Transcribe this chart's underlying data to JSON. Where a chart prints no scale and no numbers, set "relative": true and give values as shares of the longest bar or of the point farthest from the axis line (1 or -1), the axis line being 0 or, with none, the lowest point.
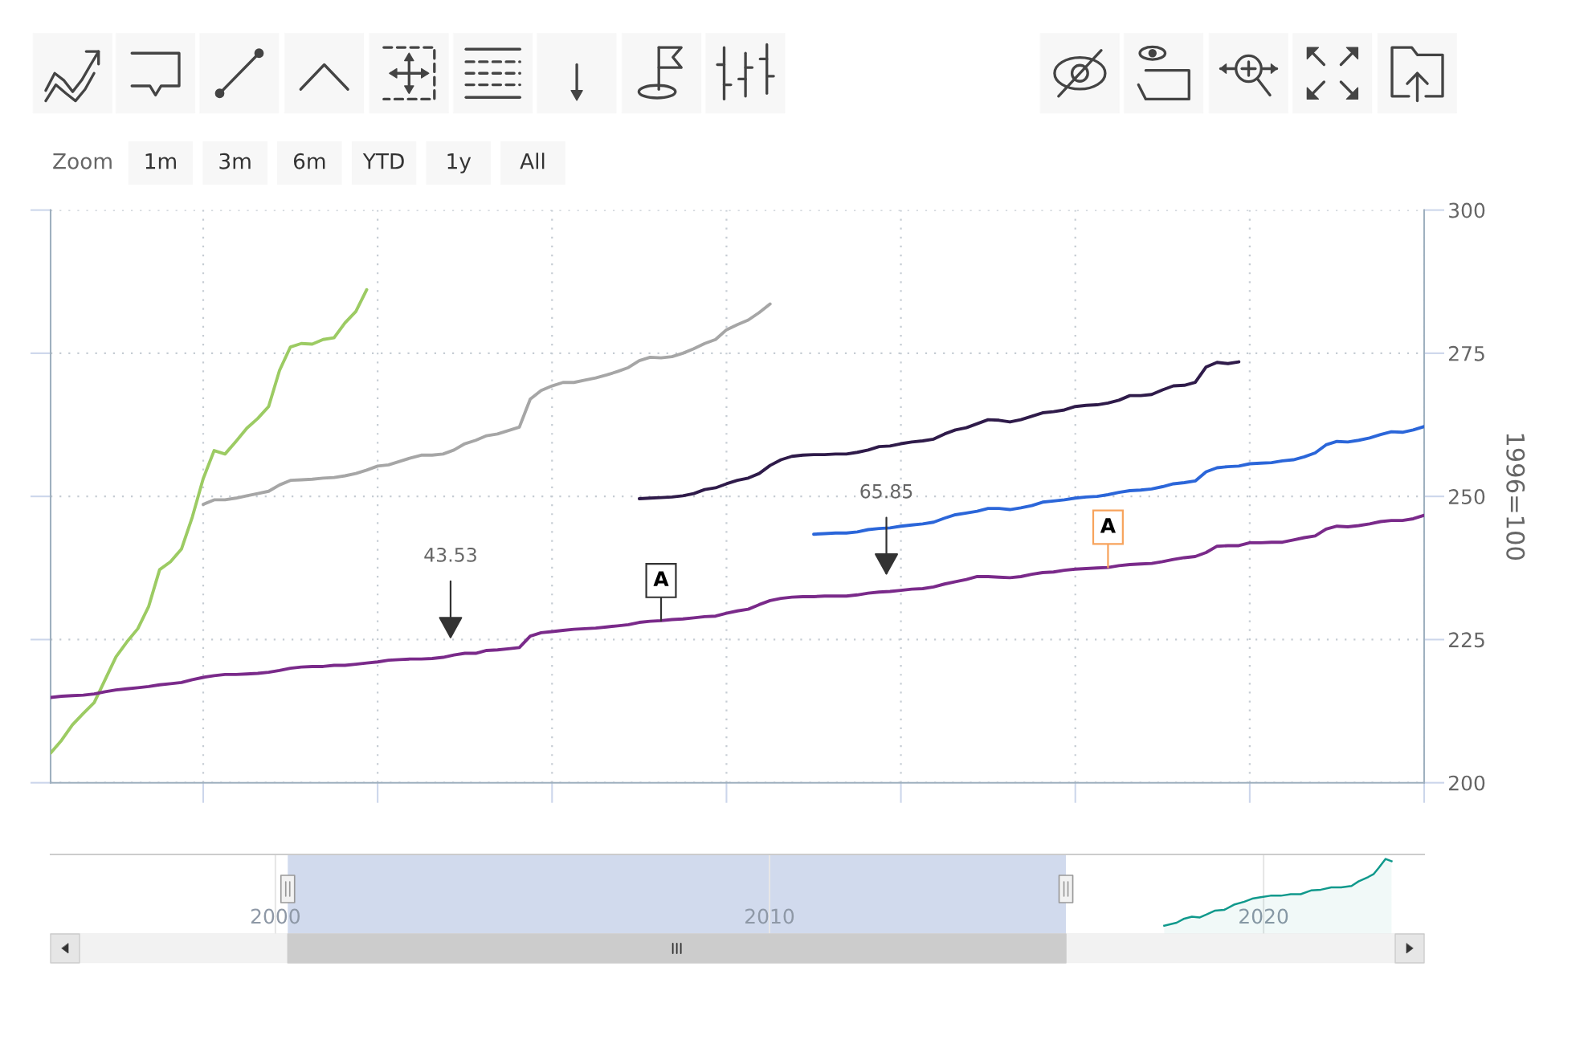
{
  "chart_data": [
    {
      "type": "line",
      "ylabel": "1996=100",
      "ylim": [
        200,
        300
      ],
      "yticks": [
        200,
        225,
        250,
        275,
        300
      ],
      "grid": true,
      "tick_labels": "y",
      "categories": [
        null,
        null,
        null,
        null,
        null,
        null,
        null,
        null,
        null,
        null,
        null,
        null,
        null,
        null,
        null,
        null,
        null,
        null,
        null,
        null,
        null,
        null,
        null,
        null,
        null,
        null,
        null,
        null,
        null,
        null,
        null,
        null,
        null,
        null,
        null,
        null,
        null,
        null,
        null,
        null,
        null,
        null,
        null,
        null,
        null,
        null,
        null,
        null,
        null,
        null,
        null,
        null,
        null,
        null,
        null,
        null,
        null,
        null,
        null,
        null,
        null,
        null,
        null,
        null,
        null,
        null,
        null,
        null,
        null,
        null,
        null,
        null,
        null,
        null,
        null,
        null,
        null,
        null,
        null,
        null,
        null,
        null,
        null,
        null,
        null,
        null,
        null,
        null,
        null,
        null,
        null,
        null,
        null,
        null,
        null,
        null,
        null,
        null,
        null,
        null,
        null,
        null,
        null,
        null,
        null,
        null,
        null,
        null,
        null,
        null,
        null,
        null,
        null,
        null,
        null,
        null,
        null,
        null,
        null,
        null,
        null,
        null,
        null,
        null,
        null,
        null,
        null
      ],
      "series": [
        {
          "color": "#9ccb63",
          "values": [
            205.2,
            207.4,
            210.1,
            212.1,
            214.0,
            218.0,
            222.0,
            224.6,
            226.9,
            230.8,
            237.2,
            238.6,
            240.8,
            246.4,
            253.1,
            258.0,
            257.4,
            259.6,
            261.9,
            263.6,
            265.7,
            272.0,
            276.1,
            276.7,
            276.6,
            277.4,
            277.7,
            280.3,
            282.3,
            286.1,
            null,
            null,
            null,
            null,
            null,
            null,
            null,
            null,
            null,
            null,
            null,
            null,
            null,
            null,
            null,
            null,
            null,
            null,
            null,
            null,
            null,
            null,
            null,
            null,
            null,
            null,
            null,
            null,
            null,
            null,
            null,
            null,
            null,
            null,
            null,
            null,
            null,
            null,
            null,
            null,
            null,
            null,
            null,
            null,
            null,
            null,
            null,
            null,
            null,
            null,
            null,
            null,
            null,
            null,
            null,
            null,
            null,
            null,
            null,
            null,
            null,
            null,
            null,
            null,
            null,
            null,
            null,
            null,
            null,
            null,
            null,
            null,
            null,
            null,
            null,
            null,
            null,
            null,
            null,
            null,
            null,
            null,
            null,
            null,
            null,
            null,
            null,
            null,
            null,
            null,
            null,
            null,
            null,
            null,
            null,
            null,
            null
          ]
        },
        {
          "color": "#a6a6a6",
          "values": [
            null,
            null,
            null,
            null,
            null,
            null,
            null,
            null,
            null,
            null,
            null,
            null,
            null,
            null,
            248.6,
            249.4,
            249.4,
            249.7,
            250.1,
            250.5,
            250.9,
            252.0,
            252.8,
            252.9,
            253.0,
            253.2,
            253.3,
            253.6,
            254.0,
            254.6,
            255.3,
            255.5,
            256.1,
            256.7,
            257.2,
            257.2,
            257.4,
            258.1,
            259.2,
            259.8,
            260.6,
            260.9,
            261.5,
            262.1,
            267.0,
            268.5,
            269.3,
            269.9,
            269.9,
            270.3,
            270.7,
            271.2,
            271.8,
            272.5,
            273.7,
            274.3,
            274.2,
            274.4,
            275.0,
            275.8,
            276.7,
            277.4,
            279.1,
            280.0,
            280.8,
            282.1,
            283.6,
            null,
            null,
            null,
            null,
            null,
            null,
            null,
            null,
            null,
            null,
            null,
            null,
            null,
            null,
            null,
            null,
            null,
            null,
            null,
            null,
            null,
            null,
            null,
            null,
            null,
            null,
            null,
            null,
            null,
            null,
            null,
            null,
            null,
            null,
            null,
            null,
            null,
            null,
            null,
            null,
            null,
            null,
            null,
            null,
            null,
            null,
            null,
            null,
            null,
            null,
            null,
            null,
            null,
            null,
            null,
            null,
            null,
            null,
            null,
            null
          ]
        },
        {
          "color": "#2f1b4a",
          "values": [
            null,
            null,
            null,
            null,
            null,
            null,
            null,
            null,
            null,
            null,
            null,
            null,
            null,
            null,
            null,
            null,
            null,
            null,
            null,
            null,
            null,
            null,
            null,
            null,
            null,
            null,
            null,
            null,
            null,
            null,
            null,
            null,
            null,
            null,
            null,
            null,
            null,
            null,
            null,
            null,
            null,
            null,
            null,
            null,
            null,
            null,
            null,
            null,
            null,
            null,
            null,
            null,
            null,
            null,
            249.6,
            249.7,
            249.8,
            249.9,
            250.1,
            250.5,
            251.2,
            251.5,
            252.2,
            252.8,
            253.2,
            254.0,
            255.4,
            256.4,
            257.0,
            257.2,
            257.3,
            257.3,
            257.4,
            257.4,
            257.7,
            258.1,
            258.7,
            258.8,
            259.2,
            259.5,
            259.7,
            260.0,
            260.9,
            261.6,
            262.0,
            262.7,
            263.4,
            263.3,
            263.0,
            263.4,
            264.0,
            264.6,
            264.8,
            265.1,
            265.7,
            265.9,
            266.0,
            266.3,
            266.8,
            267.6,
            267.6,
            267.8,
            268.6,
            269.3,
            269.4,
            269.9,
            272.6,
            273.4,
            273.2,
            273.5,
            null,
            null,
            null,
            null,
            null,
            null,
            null,
            null,
            null,
            null,
            null,
            null,
            null,
            null,
            null,
            null,
            null
          ]
        },
        {
          "color": "#2b66d9",
          "values": [
            null,
            null,
            null,
            null,
            null,
            null,
            null,
            null,
            null,
            null,
            null,
            null,
            null,
            null,
            null,
            null,
            null,
            null,
            null,
            null,
            null,
            null,
            null,
            null,
            null,
            null,
            null,
            null,
            null,
            null,
            null,
            null,
            null,
            null,
            null,
            null,
            null,
            null,
            null,
            null,
            null,
            null,
            null,
            null,
            null,
            null,
            null,
            null,
            null,
            null,
            null,
            null,
            null,
            null,
            null,
            null,
            null,
            null,
            null,
            null,
            null,
            null,
            null,
            null,
            null,
            null,
            null,
            null,
            null,
            null,
            243.4,
            243.5,
            243.6,
            243.6,
            243.8,
            244.2,
            244.4,
            244.5,
            244.8,
            245.0,
            245.2,
            245.5,
            246.2,
            246.8,
            247.1,
            247.4,
            247.9,
            247.9,
            247.7,
            248.0,
            248.4,
            249.0,
            249.2,
            249.4,
            249.7,
            249.9,
            250.0,
            250.3,
            250.7,
            251.0,
            251.1,
            251.3,
            251.7,
            252.2,
            252.4,
            252.7,
            254.3,
            255.0,
            255.2,
            255.3,
            255.7,
            255.8,
            255.9,
            256.2,
            256.4,
            256.9,
            257.6,
            259.0,
            259.6,
            259.5,
            259.8,
            260.2,
            260.8,
            261.3,
            261.2,
            261.6,
            262.2
          ]
        },
        {
          "color": "#7a2a8a",
          "values": [
            214.9,
            215.1,
            215.2,
            215.3,
            215.5,
            215.9,
            216.2,
            216.4,
            216.6,
            216.8,
            217.1,
            217.3,
            217.5,
            218.0,
            218.4,
            218.7,
            218.9,
            218.9,
            219.0,
            219.1,
            219.3,
            219.6,
            220.0,
            220.2,
            220.3,
            220.3,
            220.5,
            220.5,
            220.7,
            220.9,
            221.1,
            221.4,
            221.5,
            221.6,
            221.6,
            221.7,
            221.9,
            222.3,
            222.6,
            222.6,
            223.1,
            223.2,
            223.4,
            223.6,
            225.6,
            226.2,
            226.4,
            226.6,
            226.8,
            226.9,
            227.0,
            227.2,
            227.4,
            227.6,
            228.0,
            228.2,
            228.3,
            228.5,
            228.6,
            228.8,
            229.0,
            229.1,
            229.6,
            230.0,
            230.3,
            231.1,
            231.8,
            232.2,
            232.4,
            232.5,
            232.5,
            232.6,
            232.6,
            232.6,
            232.8,
            233.1,
            233.3,
            233.4,
            233.6,
            233.8,
            233.9,
            234.2,
            234.7,
            235.1,
            235.5,
            236.0,
            236.0,
            235.9,
            235.8,
            236.0,
            236.4,
            236.7,
            236.8,
            237.1,
            237.3,
            237.4,
            237.5,
            237.6,
            237.9,
            238.1,
            238.2,
            238.3,
            238.6,
            239.0,
            239.3,
            239.5,
            240.2,
            241.3,
            241.4,
            241.4,
            241.9,
            241.9,
            242.0,
            242.0,
            242.4,
            242.8,
            243.1,
            244.3,
            244.8,
            244.7,
            244.9,
            245.2,
            245.6,
            245.8,
            245.8,
            246.1,
            246.7
          ],
          "value_labels": [
            null,
            null,
            null,
            null,
            null,
            null,
            null,
            null,
            null,
            null,
            null,
            null,
            null,
            null,
            null,
            null,
            null,
            null,
            null,
            null,
            null,
            null,
            null,
            null,
            null,
            null,
            null,
            null,
            null,
            null,
            null,
            null,
            null,
            null,
            null,
            null,
            null,
            null,
            null,
            null,
            null,
            null,
            null,
            null,
            null,
            null,
            null,
            null,
            null,
            null,
            null,
            null,
            null,
            null,
            null,
            null,
            "A",
            null,
            null,
            null,
            null,
            null,
            null,
            null,
            null,
            null,
            null,
            null,
            null,
            null,
            null,
            null,
            null,
            null,
            null,
            null,
            null,
            null,
            null,
            null,
            null,
            null,
            null,
            null,
            null,
            null,
            null,
            null,
            null,
            null,
            null,
            null,
            null,
            null,
            null,
            null,
            null,
            "A",
            null,
            null,
            null,
            null,
            null,
            null,
            null,
            null,
            null,
            null,
            null,
            null,
            null,
            null,
            null,
            null,
            null,
            null,
            null,
            null,
            null,
            null,
            null,
            null,
            null,
            null,
            null,
            null,
            null
          ]
        }
      ],
      "annotations": [
        "43.53",
        "65.85",
        "Zoom",
        "1m",
        "3m",
        "6m",
        "YTD",
        "1y",
        "All"
      ]
    },
    {
      "type": "area",
      "relative": true,
      "color": "#10998c",
      "x": [
        2017.99,
        2018.24,
        2018.38,
        2018.55,
        2018.71,
        2018.85,
        2019.01,
        2019.2,
        2019.4,
        2019.61,
        2019.77,
        2019.94,
        2020.14,
        2020.35,
        2020.55,
        2020.75,
        2020.96,
        2021.16,
        2021.37,
        2021.57,
        2021.78,
        2021.92,
        2022.12,
        2022.23,
        2022.33,
        2022.47,
        2022.59
      ],
      "values": [
        0.11,
        0.15,
        0.2,
        0.23,
        0.22,
        0.26,
        0.31,
        0.32,
        0.39,
        0.43,
        0.47,
        0.49,
        0.51,
        0.51,
        0.53,
        0.53,
        0.58,
        0.59,
        0.62,
        0.62,
        0.64,
        0.7,
        0.76,
        0.8,
        0.88,
        1.0,
        0.97
      ],
      "xlim": [
        1995.45,
        2023.25
      ],
      "xticks": [
        2000,
        2010,
        2020
      ],
      "grid": "x",
      "tick_labels": "x",
      "bands": [
        {
          "axis": "x",
          "from": 2000.25,
          "to": 2016.0,
          "color": "#d1daed"
        }
      ]
    }
  ]
}
